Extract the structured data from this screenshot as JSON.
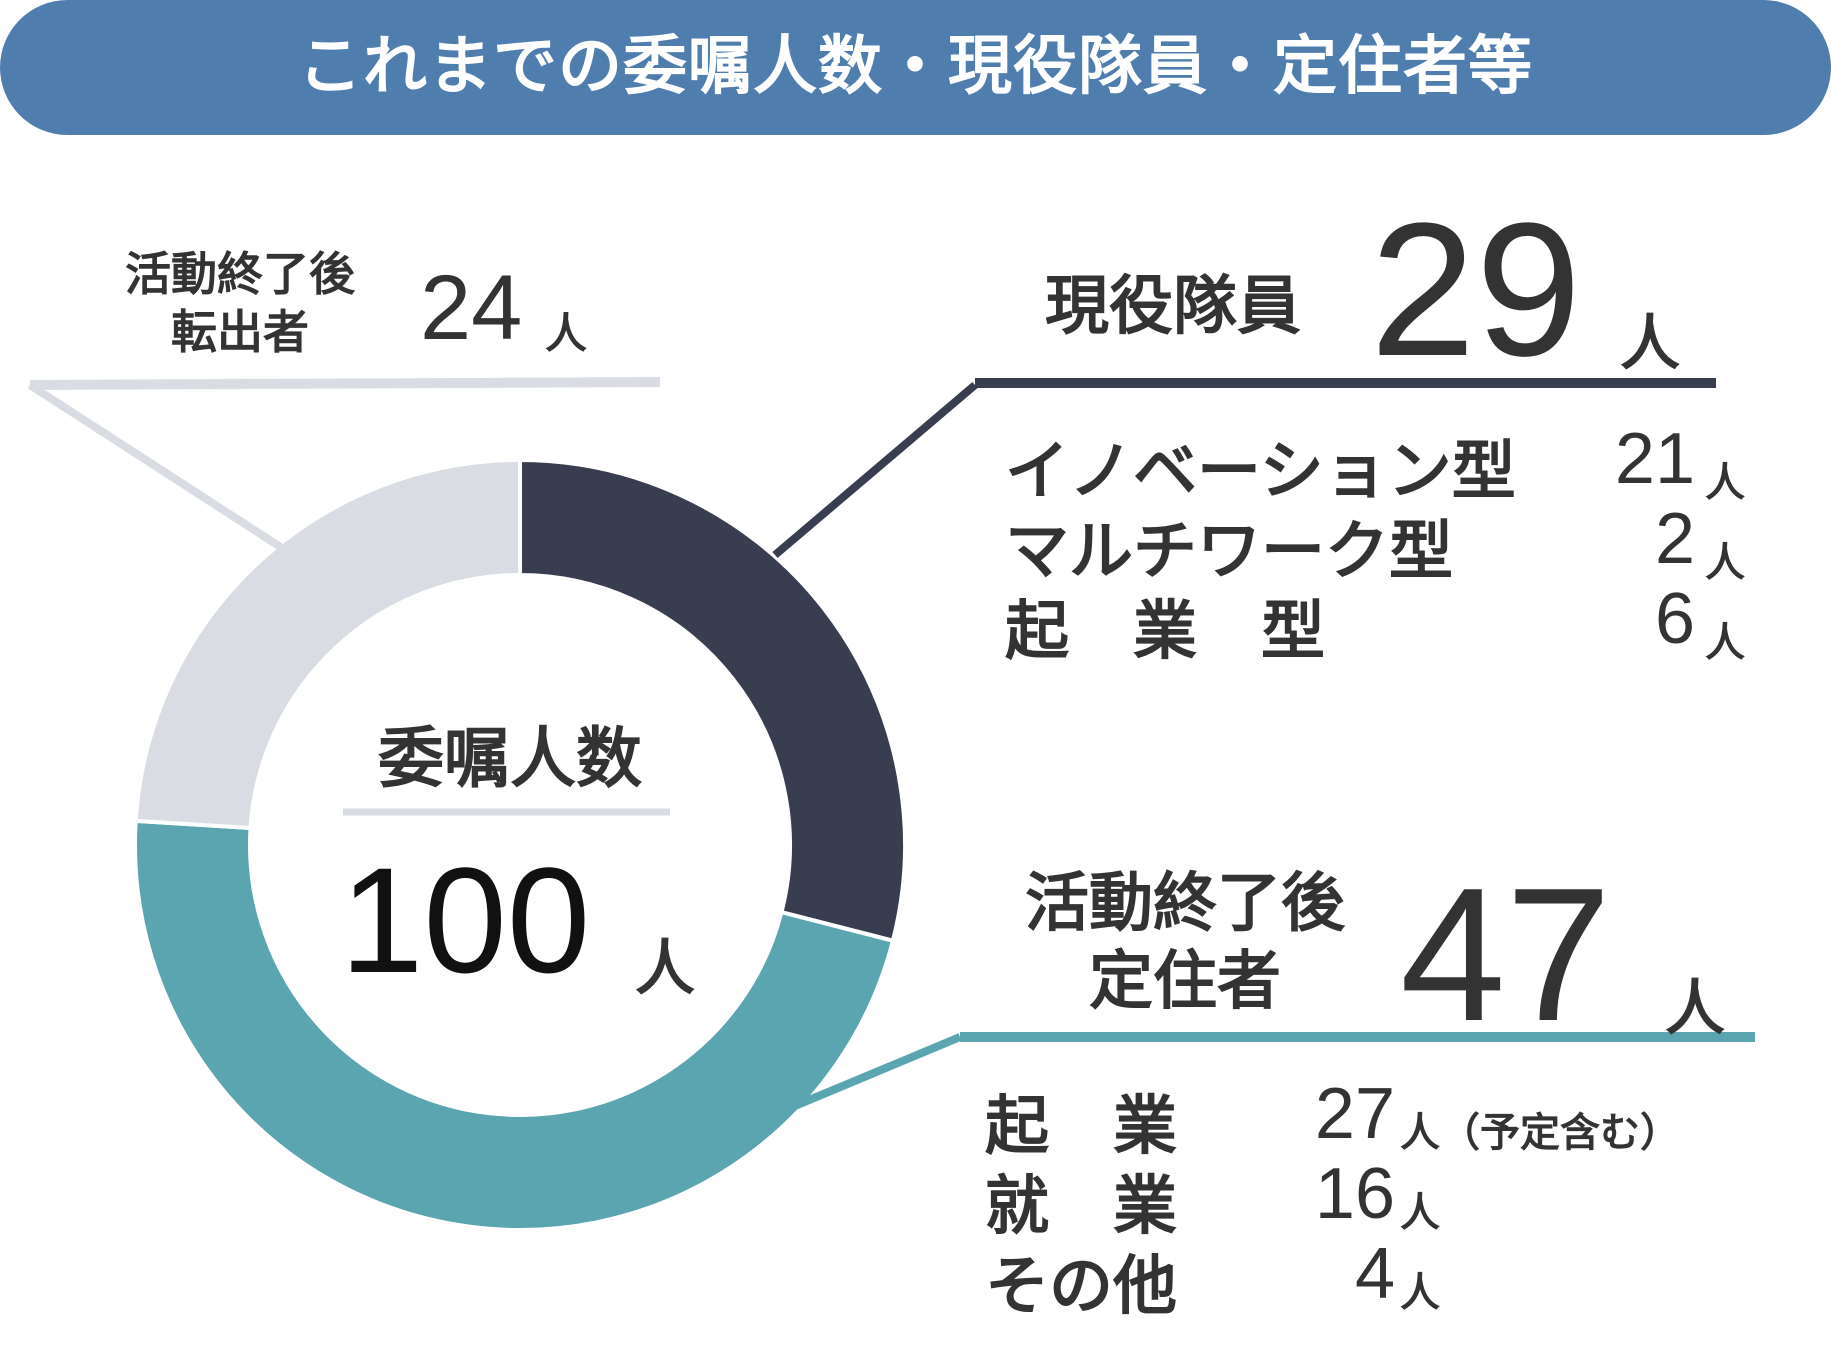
{
  "header": {
    "title": "これまでの委嘱人数・現役隊員・定住者等"
  },
  "colors": {
    "header": "#4f7eae",
    "current": "#383d50",
    "settled": "#5ba5b1",
    "former": "#d9dce3",
    "divider": "#d9dce3"
  },
  "center": {
    "label": "委嘱人数",
    "value": "100",
    "unit": "人"
  },
  "former": {
    "label_line1": "活動終了後",
    "label_line2": "転出者",
    "value": "24",
    "unit": "人"
  },
  "current": {
    "label": "現役隊員",
    "value": "29",
    "unit": "人",
    "details": [
      {
        "name": "イノベーション型",
        "value": "21",
        "unit": "人"
      },
      {
        "name": "マルチワーク型",
        "value": "2",
        "unit": "人"
      },
      {
        "name": "起　業　型",
        "value": "6",
        "unit": "人"
      }
    ]
  },
  "settled": {
    "label_line1": "活動終了後",
    "label_line2": "定住者",
    "value": "47",
    "unit": "人",
    "details": [
      {
        "name": "起　業",
        "value": "27",
        "unit": "人（予定含む）"
      },
      {
        "name": "就　業",
        "value": "16",
        "unit": "人"
      },
      {
        "name": "その他",
        "value": "4",
        "unit": "人"
      }
    ]
  },
  "chart_data": {
    "type": "pie",
    "total": 100,
    "categories": [
      "現役隊員",
      "活動終了後定住者",
      "活動終了後転出者"
    ],
    "values": [
      29,
      47,
      24
    ]
  }
}
